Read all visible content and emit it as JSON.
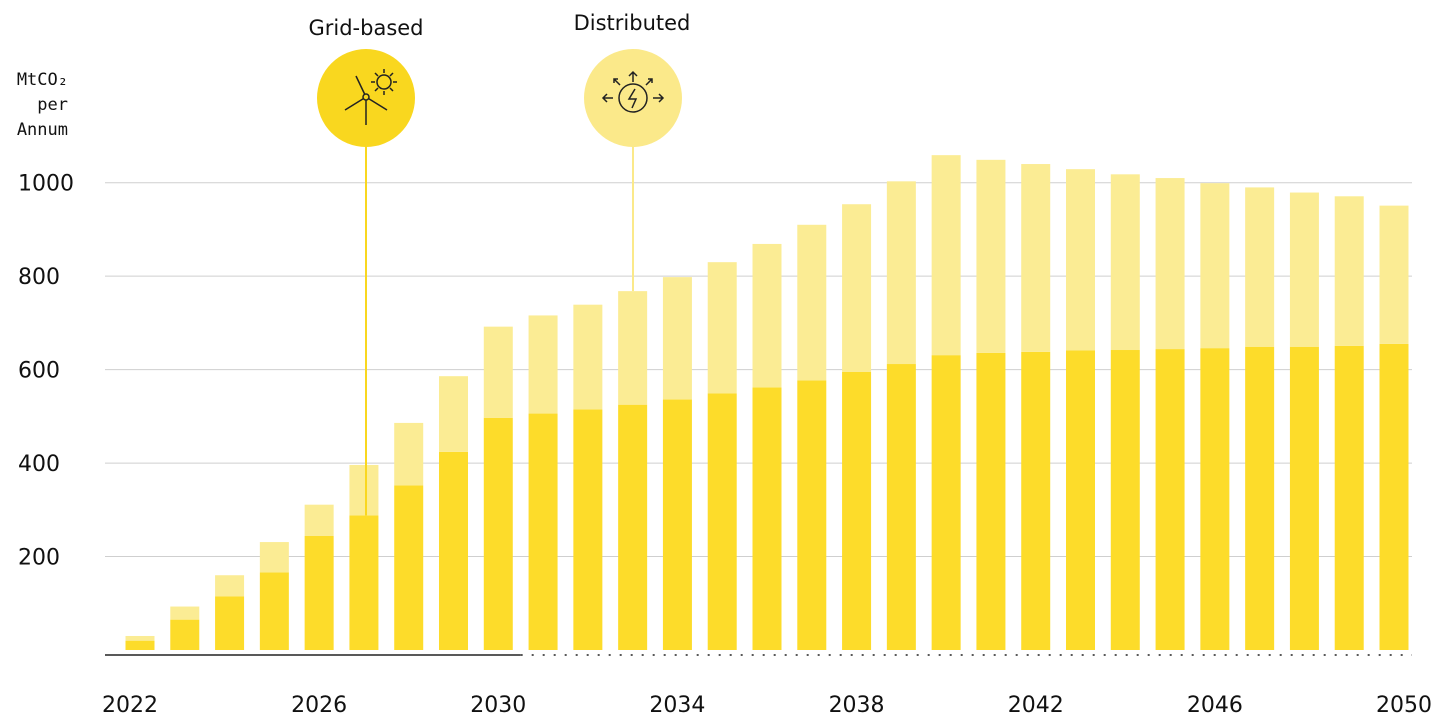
{
  "chart_data": {
    "type": "stacked_bar",
    "y_label_lines": [
      "MtCO₂",
      "per",
      "Annum"
    ],
    "categories": [
      "2022",
      null,
      null,
      null,
      "2026",
      null,
      null,
      null,
      "2030",
      null,
      null,
      null,
      "2034",
      null,
      null,
      null,
      "2038",
      null,
      null,
      null,
      "2042",
      null,
      null,
      null,
      "2046",
      null,
      null,
      null,
      "2050"
    ],
    "series": [
      {
        "name": "Grid-based",
        "color": "#fddc2a",
        "values": [
          20,
          65,
          115,
          166,
          244,
          288,
          352,
          424,
          497,
          506,
          515,
          525,
          536,
          549,
          562,
          577,
          595,
          612,
          631,
          636,
          638,
          641,
          642,
          644,
          646,
          649,
          649,
          651,
          655
        ]
      },
      {
        "name": "Distributed",
        "color": "#fbec94",
        "values": [
          10,
          28,
          45,
          65,
          67,
          108,
          134,
          162,
          195,
          210,
          224,
          243,
          262,
          281,
          307,
          333,
          359,
          391,
          428,
          413,
          402,
          388,
          376,
          366,
          353,
          341,
          330,
          320,
          296
        ]
      }
    ],
    "ylim": [
      0,
      1100
    ],
    "yticks": [
      200,
      400,
      600,
      800,
      1000
    ],
    "grid": true
  }
}
